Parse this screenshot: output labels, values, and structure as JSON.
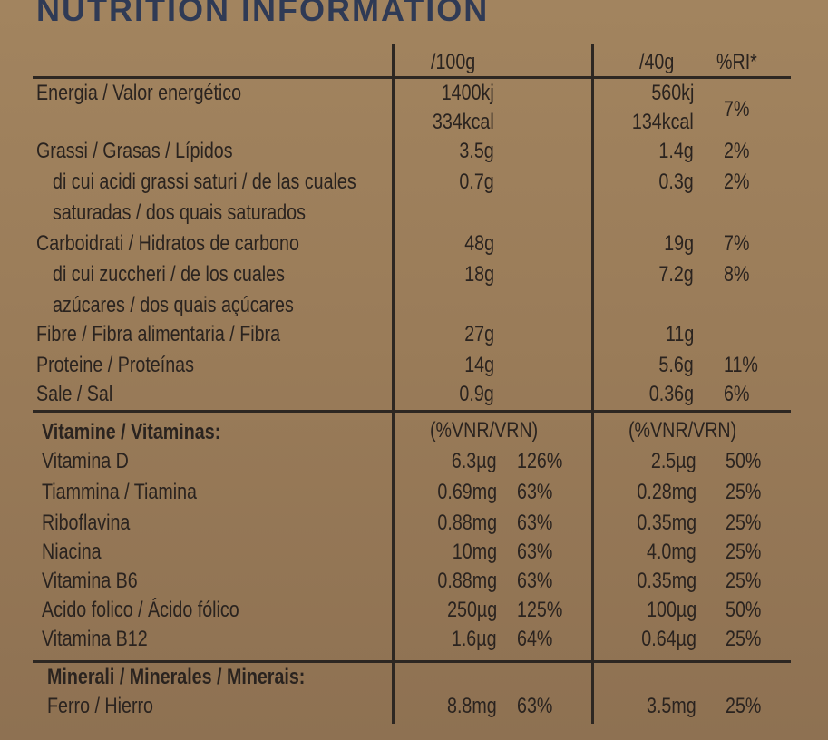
{
  "title": "NUTRITION INFORMATION",
  "header": {
    "per100": "/100g",
    "per40": "/40g",
    "ri": "%RI*"
  },
  "nutrients": [
    {
      "name": "Energia / Valor energético",
      "v100": "1400kj",
      "v40": "560kj",
      "ri": ""
    },
    {
      "name": "",
      "v100": "334kcal",
      "v40": "134kcal",
      "ri": "7%"
    },
    {
      "name": "Grassi / Grasas / Lípidos",
      "v100": "3.5g",
      "v40": "1.4g",
      "ri": "2%"
    },
    {
      "name": "di cui acidi grassi saturi / de las cuales",
      "v100": "0.7g",
      "v40": "0.3g",
      "ri": "2%"
    },
    {
      "name": "saturadas / dos quais saturados",
      "v100": "",
      "v40": "",
      "ri": ""
    },
    {
      "name": "Carboidrati / Hidratos de carbono",
      "v100": "48g",
      "v40": "19g",
      "ri": "7%"
    },
    {
      "name": "di cui zuccheri / de los cuales",
      "v100": "18g",
      "v40": "7.2g",
      "ri": "8%"
    },
    {
      "name": "azúcares / dos quais açúcares",
      "v100": "",
      "v40": "",
      "ri": ""
    },
    {
      "name": "Fibre / Fibra alimentaria / Fibra",
      "v100": "27g",
      "v40": "11g",
      "ri": ""
    },
    {
      "name": "Proteine / Proteínas",
      "v100": "14g",
      "v40": "5.6g",
      "ri": "11%"
    },
    {
      "name": "Sale / Sal",
      "v100": "0.9g",
      "v40": "0.36g",
      "ri": "6%"
    }
  ],
  "vitamins": {
    "heading": "Vitamine / Vitaminas:",
    "unit100": "(%VNR/VRN)",
    "unit40": "(%VNR/VRN)",
    "rows": [
      {
        "name": "Vitamina D",
        "v100": "6.3µg",
        "p100": "126%",
        "v40": "2.5µg",
        "p40": "50%"
      },
      {
        "name": "Tiammina / Tiamina",
        "v100": "0.69mg",
        "p100": "63%",
        "v40": "0.28mg",
        "p40": "25%"
      },
      {
        "name": "Riboflavina",
        "v100": "0.88mg",
        "p100": "63%",
        "v40": "0.35mg",
        "p40": "25%"
      },
      {
        "name": "Niacina",
        "v100": "10mg",
        "p100": "63%",
        "v40": "4.0mg",
        "p40": "25%"
      },
      {
        "name": "Vitamina B6",
        "v100": "0.88mg",
        "p100": "63%",
        "v40": "0.35mg",
        "p40": "25%"
      },
      {
        "name": "Acido folico / Ácido fólico",
        "v100": "250µg",
        "p100": "125%",
        "v40": "100µg",
        "p40": "50%"
      },
      {
        "name": "Vitamina B12",
        "v100": "1.6µg",
        "p100": "64%",
        "v40": "0.64µg",
        "p40": "25%"
      }
    ]
  },
  "minerals": {
    "heading": "Minerali / Minerales / Minerais:",
    "rows": [
      {
        "name": "Ferro / Hierro",
        "v100": "8.8mg",
        "p100": "63%",
        "v40": "3.5mg",
        "p40": "25%"
      }
    ]
  }
}
